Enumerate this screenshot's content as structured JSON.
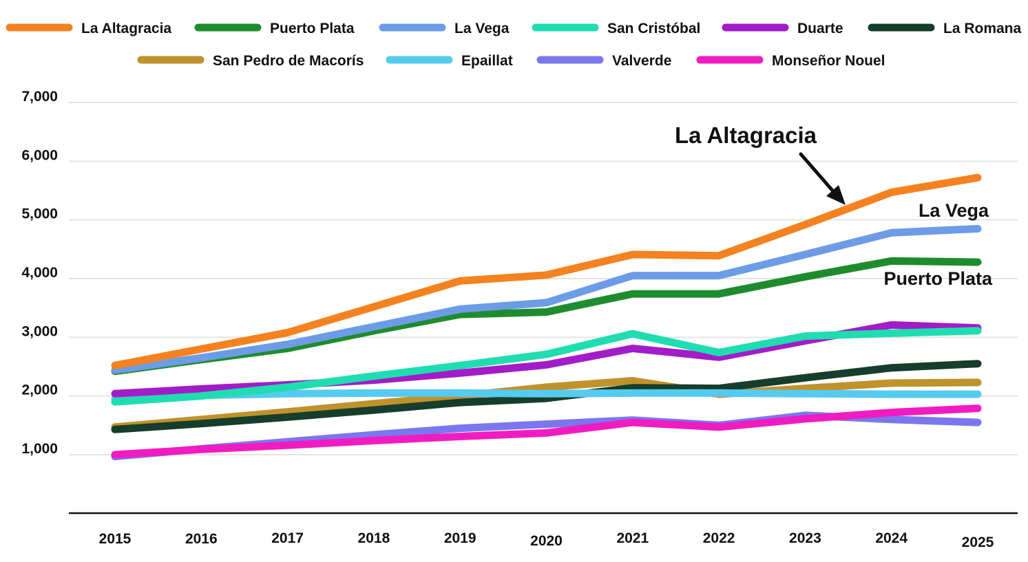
{
  "chart_data": {
    "type": "line",
    "title": "",
    "xlabel": "",
    "ylabel": "",
    "ylim": [
      0,
      7000
    ],
    "y_ticks": [
      {
        "value": 1000,
        "label": "1,000"
      },
      {
        "value": 2000,
        "label": "2,000"
      },
      {
        "value": 3000,
        "label": "3,000"
      },
      {
        "value": 4000,
        "label": "4,000"
      },
      {
        "value": 5000,
        "label": "5,000"
      },
      {
        "value": 6000,
        "label": "6,000"
      },
      {
        "value": 7000,
        "label": "7,000"
      }
    ],
    "grid": true,
    "legend_placement": "top",
    "x": [
      "2015",
      "2016",
      "2017",
      "2018",
      "2019",
      "2020",
      "2021",
      "2022",
      "2023",
      "2024",
      "2025"
    ],
    "series": [
      {
        "name": "La Altagracia",
        "color": "#F58220",
        "values": [
          2520,
          2800,
          3080,
          3520,
          3960,
          4060,
          4410,
          4390,
          4920,
          5470,
          5720
        ]
      },
      {
        "name": "Puerto Plata",
        "color": "#1E8C2E",
        "values": [
          2420,
          2620,
          2810,
          3110,
          3390,
          3430,
          3740,
          3740,
          4030,
          4300,
          4280
        ]
      },
      {
        "name": "La Vega",
        "color": "#6C9CE6",
        "values": [
          2440,
          2650,
          2880,
          3180,
          3480,
          3590,
          4050,
          4050,
          4410,
          4780,
          4850
        ]
      },
      {
        "name": "San Cristóbal",
        "color": "#1FDDB0",
        "values": [
          1900,
          2000,
          2150,
          2340,
          2520,
          2710,
          3060,
          2740,
          3020,
          3070,
          3110
        ]
      },
      {
        "name": "Duarte",
        "color": "#A21CC7",
        "values": [
          2040,
          2120,
          2190,
          2270,
          2390,
          2530,
          2810,
          2660,
          2940,
          3210,
          3160
        ]
      },
      {
        "name": "La Romana",
        "color": "#173D2C",
        "values": [
          1430,
          1530,
          1640,
          1760,
          1890,
          1960,
          2140,
          2130,
          2310,
          2480,
          2550
        ]
      },
      {
        "name": "San Pedro de Macorís",
        "color": "#BF922C",
        "values": [
          1470,
          1600,
          1730,
          1870,
          2000,
          2150,
          2260,
          2030,
          2130,
          2220,
          2230
        ]
      },
      {
        "name": "Epaillat",
        "color": "#55CBEF",
        "values": [
          1950,
          2010,
          2040,
          2050,
          2050,
          2040,
          2050,
          2050,
          2040,
          2030,
          2030
        ]
      },
      {
        "name": "Valverde",
        "color": "#7A77EE",
        "values": [
          970,
          1100,
          1220,
          1340,
          1450,
          1520,
          1590,
          1500,
          1670,
          1600,
          1550
        ]
      },
      {
        "name": "Monseñor Nouel",
        "color": "#F01CC1",
        "values": [
          1000,
          1090,
          1160,
          1240,
          1310,
          1370,
          1550,
          1470,
          1610,
          1720,
          1790
        ]
      }
    ],
    "legend_rows": [
      [
        "La Altagracia",
        "Puerto Plata",
        "La Vega",
        "San Cristóbal",
        "Duarte",
        "La Romana"
      ],
      [
        "San Pedro de Macorís",
        "Epaillat",
        "Valverde",
        "Monseñor Nouel"
      ]
    ],
    "annotations": [
      {
        "text": "La Altagracia",
        "series": "La Altagracia",
        "arrow": true
      },
      {
        "text": "La Vega",
        "series": "La Vega",
        "arrow": false
      },
      {
        "text": "Puerto Plata",
        "series": "Puerto Plata",
        "arrow": false
      }
    ]
  }
}
